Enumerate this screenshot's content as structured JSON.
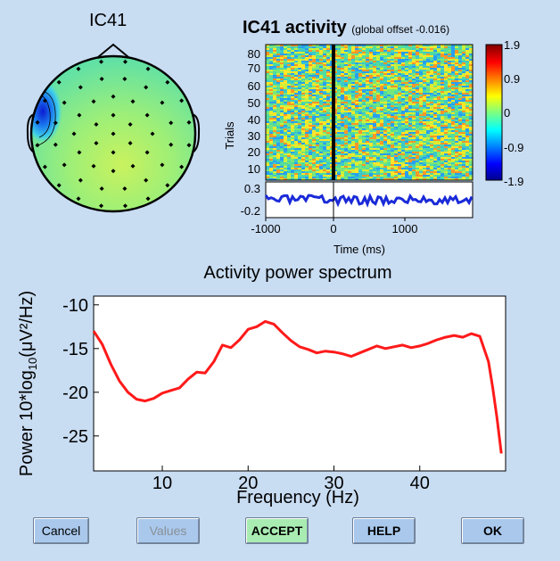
{
  "topo": {
    "title": "IC41"
  },
  "erp": {
    "title": "IC41 activity",
    "subtitle": "(global offset -0.016)",
    "ylabel": "Trials",
    "trial_ticks": [
      "80",
      "70",
      "60",
      "50",
      "40",
      "30",
      "20",
      "10"
    ],
    "colorbar_ticks": [
      "1.9",
      "0.9",
      "0",
      "-0.9",
      "-1.9"
    ],
    "trace_ticks": [
      "0.3",
      "-0.2"
    ],
    "time_ticks": [
      "-1000",
      "0",
      "1000"
    ],
    "xlabel": "Time (ms)"
  },
  "colors": {
    "accent_red": "#ff1a1a",
    "trace_blue": "#1a2ad8",
    "background": "#c8dcf2"
  },
  "chart_data": {
    "type": "line",
    "title": "Activity power spectrum",
    "xlabel": "Frequency (Hz)",
    "ylabel_prefix": "Power 10*log",
    "ylabel_sub": "10",
    "ylabel_suffix": "(μV²/Hz)",
    "xlim": [
      2,
      50
    ],
    "ylim": [
      -29,
      -9
    ],
    "xticks": [
      10,
      20,
      30,
      40
    ],
    "yticks": [
      -10,
      -15,
      -20,
      -25
    ],
    "grid": false,
    "series": [
      {
        "name": "spectrum",
        "color": "#ff1a1a",
        "x": [
          2,
          3,
          4,
          5,
          6,
          7,
          8,
          9,
          10,
          11,
          12,
          13,
          14,
          15,
          16,
          17,
          18,
          19,
          20,
          21,
          22,
          23,
          24,
          25,
          26,
          27,
          28,
          29,
          30,
          31,
          32,
          33,
          34,
          35,
          36,
          37,
          38,
          39,
          40,
          41,
          42,
          43,
          44,
          45,
          46,
          47,
          48,
          48.5,
          49,
          49.5
        ],
        "y": [
          -13,
          -14.5,
          -16.8,
          -18.7,
          -20,
          -20.8,
          -21,
          -20.7,
          -20.1,
          -19.8,
          -19.5,
          -18.5,
          -17.7,
          -17.8,
          -16.5,
          -14.6,
          -14.9,
          -14,
          -12.8,
          -12.5,
          -11.9,
          -12.2,
          -13.2,
          -14.1,
          -14.8,
          -15.1,
          -15.5,
          -15.3,
          -15.4,
          -15.6,
          -15.9,
          -15.5,
          -15.1,
          -14.7,
          -15,
          -14.8,
          -14.6,
          -14.9,
          -14.7,
          -14.4,
          -14,
          -13.7,
          -13.5,
          -13.7,
          -13.3,
          -13.6,
          -16.5,
          -19.5,
          -23,
          -27
        ]
      }
    ]
  },
  "buttons": {
    "cancel": "Cancel",
    "values": "Values",
    "accept": "ACCEPT",
    "help": "HELP",
    "ok": "OK"
  }
}
